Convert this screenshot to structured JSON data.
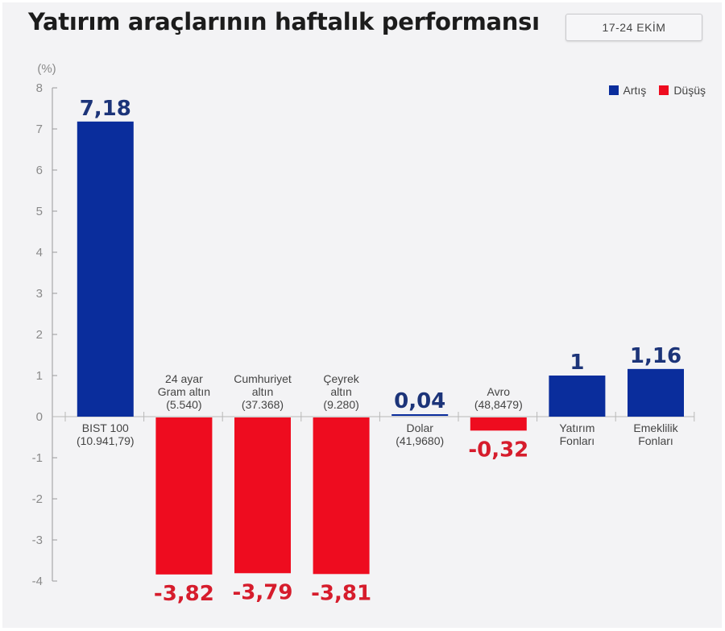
{
  "header": {
    "title": "Yatırım araçlarının haftalık performansı",
    "date_range": "17-24 EKİM"
  },
  "legend": [
    {
      "label": "Artış",
      "color": "#0a2d9c"
    },
    {
      "label": "Düşüş",
      "color": "#ee0c1f"
    }
  ],
  "colors": {
    "up": "#0a2d9c",
    "down": "#ee0c1f",
    "up_label": "#1c3479",
    "down_label": "#d61c2c",
    "axis": "#9a9a9a",
    "tick_text": "#8a8a8a",
    "category_text": "#444444"
  },
  "chart_data": {
    "type": "bar",
    "title": "Yatırım araçlarının haftalık performansı",
    "subtitle": "17-24 EKİM",
    "ylabel": "(%)",
    "xlabel": "",
    "ylim": [
      -4,
      8
    ],
    "yticks": [
      8,
      7,
      6,
      5,
      4,
      3,
      2,
      1,
      0,
      -1,
      -2,
      -3,
      -4
    ],
    "grid": false,
    "legend_position": "top-right",
    "categories": [
      {
        "lines": [
          "BIST 100",
          "(10.941,79)"
        ]
      },
      {
        "lines": [
          "24 ayar",
          "Gram altın",
          "(5.540)"
        ]
      },
      {
        "lines": [
          "Cumhuriyet",
          "altın",
          "(37.368)"
        ]
      },
      {
        "lines": [
          "Çeyrek",
          "altın",
          "(9.280)"
        ]
      },
      {
        "lines": [
          "Dolar",
          "(41,9680)"
        ]
      },
      {
        "lines": [
          "Avro",
          "(48,8479)"
        ]
      },
      {
        "lines": [
          "Yatırım",
          "Fonları"
        ]
      },
      {
        "lines": [
          "Emeklilik",
          "Fonları"
        ]
      }
    ],
    "values": [
      7.18,
      -3.82,
      -3.79,
      -3.81,
      0.04,
      -0.32,
      1,
      1.16
    ],
    "value_labels": [
      "7,18",
      "-3,82",
      "-3,79",
      "-3,81",
      "0,04",
      "-0,32",
      "1",
      "1,16"
    ]
  }
}
